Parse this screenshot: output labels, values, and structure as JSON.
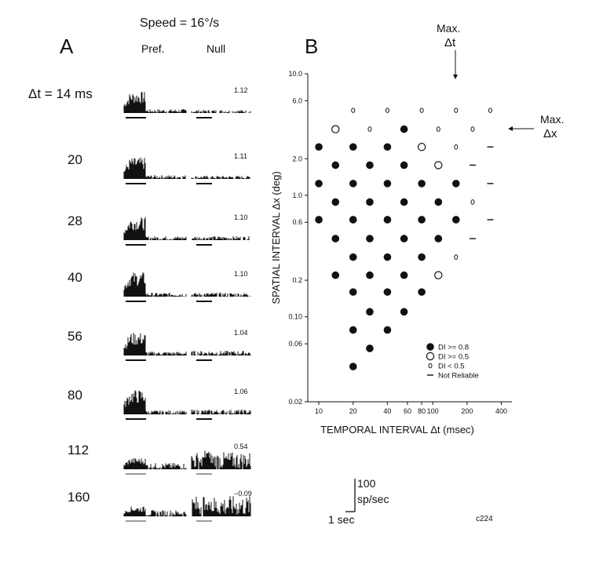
{
  "panel_a": {
    "letter": "A",
    "speed_label": "Speed = 16°/s",
    "pref_label": "Pref.",
    "null_label": "Null",
    "rows": [
      {
        "dt_label": "Δt = 14 ms",
        "ratio": "1.12"
      },
      {
        "dt_label": "20",
        "ratio": "1.11"
      },
      {
        "dt_label": "28",
        "ratio": "1.10"
      },
      {
        "dt_label": "40",
        "ratio": "1.10"
      },
      {
        "dt_label": "56",
        "ratio": "1.04"
      },
      {
        "dt_label": "80",
        "ratio": "1.06"
      },
      {
        "dt_label": "112",
        "ratio": "0.54"
      },
      {
        "dt_label": "160",
        "ratio": "−0.09"
      }
    ]
  },
  "panel_b": {
    "letter": "B",
    "max_dt_label": "Max.",
    "max_dt_symbol": "Δt",
    "max_dx_label": "Max.",
    "max_dx_symbol": "Δx"
  },
  "scale_bar": {
    "y_value": "100",
    "y_unit": "sp/sec",
    "x_label": "1 sec"
  },
  "figure_code": "c224",
  "chart_data": {
    "type": "scatter",
    "xlabel": "TEMPORAL INTERVAL Δt (msec)",
    "ylabel": "SPATIAL INTERVAL Δx (deg)",
    "x_scale": "log",
    "y_scale": "log",
    "xlim": [
      8,
      480
    ],
    "ylim": [
      0.02,
      10
    ],
    "x_tick_labels": [
      "10",
      "20",
      "40",
      "60",
      "80",
      "100",
      "200",
      "400"
    ],
    "y_tick_labels": [
      "0.02",
      "0.06",
      "0.10",
      "0.2",
      "0.6",
      "1.0",
      "2.0",
      "6.0",
      "10.0"
    ],
    "legend": {
      "position": "bottom-right",
      "entries": [
        {
          "marker": "filled",
          "label": "DI >= 0.8"
        },
        {
          "marker": "open",
          "label": "DI >= 0.5"
        },
        {
          "marker": "small",
          "label": "DI < 0.5"
        },
        {
          "marker": "dash",
          "label": "Not Reliable"
        }
      ]
    },
    "points": [
      {
        "dt": 10,
        "dx": 2.5,
        "di": "filled"
      },
      {
        "dt": 10,
        "dx": 1.25,
        "di": "filled"
      },
      {
        "dt": 10,
        "dx": 0.63,
        "di": "filled"
      },
      {
        "dt": 14,
        "dx": 3.5,
        "di": "open"
      },
      {
        "dt": 14,
        "dx": 1.77,
        "di": "filled"
      },
      {
        "dt": 14,
        "dx": 0.88,
        "di": "filled"
      },
      {
        "dt": 14,
        "dx": 0.44,
        "di": "filled"
      },
      {
        "dt": 14,
        "dx": 0.22,
        "di": "filled"
      },
      {
        "dt": 20,
        "dx": 5,
        "di": "small"
      },
      {
        "dt": 20,
        "dx": 2.5,
        "di": "filled"
      },
      {
        "dt": 20,
        "dx": 1.25,
        "di": "filled"
      },
      {
        "dt": 20,
        "dx": 0.63,
        "di": "filled"
      },
      {
        "dt": 20,
        "dx": 0.31,
        "di": "filled"
      },
      {
        "dt": 20,
        "dx": 0.16,
        "di": "filled"
      },
      {
        "dt": 20,
        "dx": 0.078,
        "di": "filled"
      },
      {
        "dt": 20,
        "dx": 0.039,
        "di": "filled"
      },
      {
        "dt": 28,
        "dx": 3.5,
        "di": "small"
      },
      {
        "dt": 28,
        "dx": 1.77,
        "di": "filled"
      },
      {
        "dt": 28,
        "dx": 0.88,
        "di": "filled"
      },
      {
        "dt": 28,
        "dx": 0.44,
        "di": "filled"
      },
      {
        "dt": 28,
        "dx": 0.22,
        "di": "filled"
      },
      {
        "dt": 28,
        "dx": 0.11,
        "di": "filled"
      },
      {
        "dt": 28,
        "dx": 0.055,
        "di": "filled"
      },
      {
        "dt": 40,
        "dx": 5,
        "di": "small"
      },
      {
        "dt": 40,
        "dx": 2.5,
        "di": "filled"
      },
      {
        "dt": 40,
        "dx": 1.25,
        "di": "filled"
      },
      {
        "dt": 40,
        "dx": 0.63,
        "di": "filled"
      },
      {
        "dt": 40,
        "dx": 0.31,
        "di": "filled"
      },
      {
        "dt": 40,
        "dx": 0.16,
        "di": "filled"
      },
      {
        "dt": 40,
        "dx": 0.078,
        "di": "filled"
      },
      {
        "dt": 56,
        "dx": 3.5,
        "di": "filled"
      },
      {
        "dt": 56,
        "dx": 1.77,
        "di": "filled"
      },
      {
        "dt": 56,
        "dx": 0.88,
        "di": "filled"
      },
      {
        "dt": 56,
        "dx": 0.44,
        "di": "filled"
      },
      {
        "dt": 56,
        "dx": 0.22,
        "di": "filled"
      },
      {
        "dt": 56,
        "dx": 0.11,
        "di": "filled"
      },
      {
        "dt": 80,
        "dx": 5,
        "di": "small"
      },
      {
        "dt": 80,
        "dx": 2.5,
        "di": "open"
      },
      {
        "dt": 80,
        "dx": 1.25,
        "di": "filled"
      },
      {
        "dt": 80,
        "dx": 0.63,
        "di": "filled"
      },
      {
        "dt": 80,
        "dx": 0.31,
        "di": "filled"
      },
      {
        "dt": 80,
        "dx": 0.16,
        "di": "filled"
      },
      {
        "dt": 112,
        "dx": 3.5,
        "di": "small"
      },
      {
        "dt": 112,
        "dx": 1.77,
        "di": "open"
      },
      {
        "dt": 112,
        "dx": 0.88,
        "di": "filled"
      },
      {
        "dt": 112,
        "dx": 0.44,
        "di": "filled"
      },
      {
        "dt": 112,
        "dx": 0.22,
        "di": "open"
      },
      {
        "dt": 160,
        "dx": 5,
        "di": "small"
      },
      {
        "dt": 160,
        "dx": 2.5,
        "di": "small"
      },
      {
        "dt": 160,
        "dx": 1.25,
        "di": "filled"
      },
      {
        "dt": 160,
        "dx": 0.63,
        "di": "filled"
      },
      {
        "dt": 160,
        "dx": 0.31,
        "di": "small"
      },
      {
        "dt": 224,
        "dx": 3.5,
        "di": "small"
      },
      {
        "dt": 224,
        "dx": 1.77,
        "di": "dash"
      },
      {
        "dt": 224,
        "dx": 0.88,
        "di": "small"
      },
      {
        "dt": 224,
        "dx": 0.44,
        "di": "dash"
      },
      {
        "dt": 320,
        "dx": 5,
        "di": "small"
      },
      {
        "dt": 320,
        "dx": 2.5,
        "di": "dash"
      },
      {
        "dt": 320,
        "dx": 1.25,
        "di": "dash"
      },
      {
        "dt": 320,
        "dx": 0.63,
        "di": "dash"
      }
    ]
  }
}
